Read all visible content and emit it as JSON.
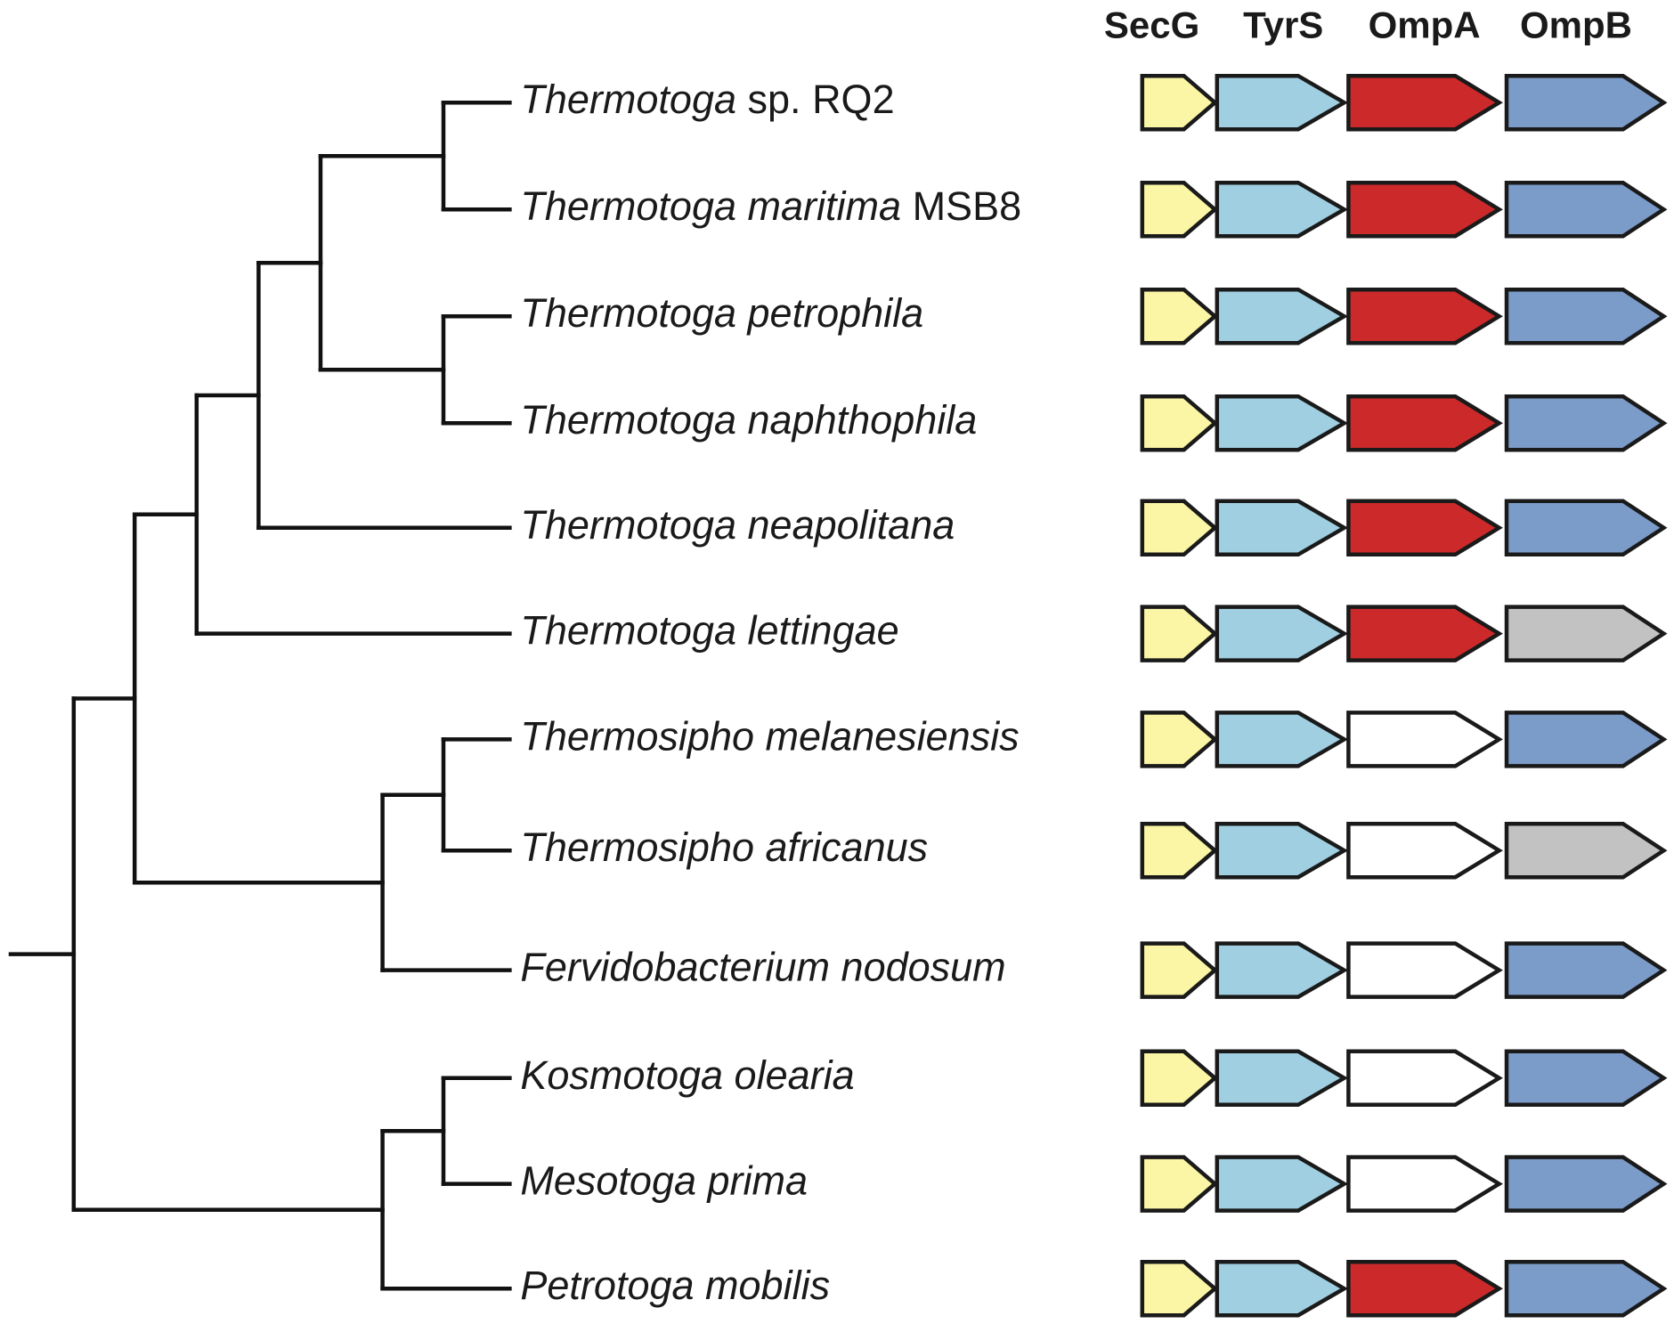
{
  "genes": [
    {
      "name": "SecG"
    },
    {
      "name": "TyrS"
    },
    {
      "name": "OmpA"
    },
    {
      "name": "OmpB"
    }
  ],
  "state_colors": {
    "SecG": "#fbf5a6",
    "TyrS": "#9fcfe0",
    "OmpA_present": "#cc2a2a",
    "OmpB_present": "#7b9bc9",
    "absent_white": "#ffffff",
    "absent_grey": "#c2c2c2"
  },
  "taxa": [
    {
      "genus": "Thermotoga",
      "species": "sp. RQ2",
      "species_italic": false,
      "ompA": "present",
      "ompB": "present"
    },
    {
      "genus": "Thermotoga",
      "species": "maritima",
      "strain": "MSB8",
      "species_italic": true,
      "ompA": "present",
      "ompB": "present"
    },
    {
      "genus": "Thermotoga",
      "species": "petrophila",
      "species_italic": true,
      "ompA": "present",
      "ompB": "present"
    },
    {
      "genus": "Thermotoga",
      "species": "naphthophila",
      "species_italic": true,
      "ompA": "present",
      "ompB": "present"
    },
    {
      "genus": "Thermotoga",
      "species": "neapolitana",
      "species_italic": true,
      "ompA": "present",
      "ompB": "present"
    },
    {
      "genus": "Thermotoga",
      "species": "lettingae",
      "species_italic": true,
      "ompA": "present",
      "ompB": "grey"
    },
    {
      "genus": "Thermosipho",
      "species": "melanesiensis",
      "species_italic": true,
      "ompA": "white",
      "ompB": "present"
    },
    {
      "genus": "Thermosipho",
      "species": "africanus",
      "species_italic": true,
      "ompA": "white",
      "ompB": "grey"
    },
    {
      "genus": "Fervidobacterium",
      "species": "nodosum",
      "species_italic": true,
      "ompA": "white",
      "ompB": "present"
    },
    {
      "genus": "Kosmotoga",
      "species": "olearia",
      "species_italic": true,
      "ompA": "white",
      "ompB": "present"
    },
    {
      "genus": "Mesotoga",
      "species": "prima",
      "species_italic": true,
      "ompA": "white",
      "ompB": "present"
    },
    {
      "genus": "Petrotoga",
      "species": "mobilis",
      "species_italic": true,
      "ompA": "present",
      "ompB": "present"
    }
  ]
}
